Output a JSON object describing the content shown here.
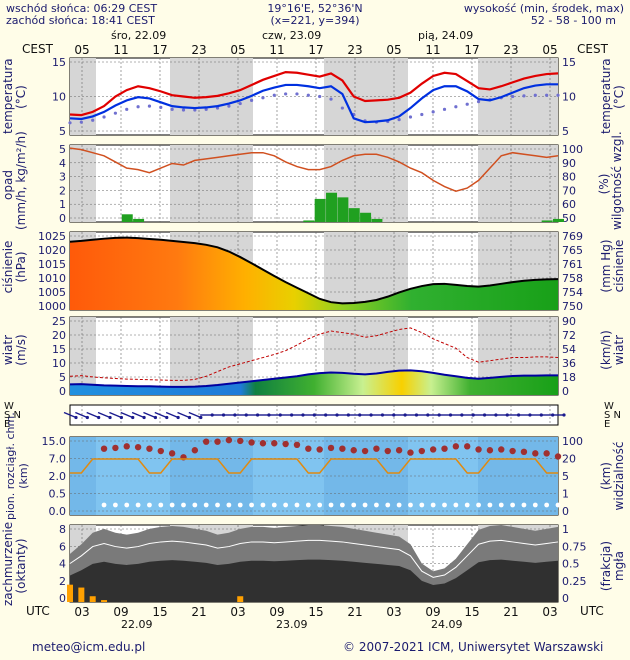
{
  "header": {
    "sunrise": "wschód słońca: 06:29 CEST",
    "sunset": "zachód słońca: 18:41 CEST",
    "coords": "19°16'E, 52°36'N",
    "grid": "(x=221, y=394)",
    "height_label": "wysokość (min, środek, max)",
    "height_values": "52 - 58 - 100 m"
  },
  "top_axis": {
    "tz": "CEST",
    "days": [
      "śro, 22.09",
      "czw, 23.09",
      "pią, 24.09"
    ],
    "hours": [
      "05",
      "11",
      "17",
      "23",
      "05",
      "11",
      "17",
      "23",
      "05",
      "11",
      "17",
      "23",
      "05"
    ]
  },
  "bottom_axis": {
    "tz": "UTC",
    "hours": [
      "03",
      "09",
      "15",
      "21",
      "03",
      "09",
      "15",
      "21",
      "03",
      "09",
      "15",
      "21",
      "03"
    ],
    "dates": [
      "22.09",
      "23.09",
      "24.09"
    ]
  },
  "panels": {
    "temperature": {
      "left_label": "temperatura\n(°C)",
      "right_label": "temperatura\n(°C)",
      "ticks": [
        "15",
        "10",
        "5"
      ]
    },
    "precip": {
      "left_label": "opad\n(mm/h, kg/m²/h)",
      "right_label": "(%)\nwilgotność wzgl.",
      "ticks_left": [
        "5",
        "4",
        "3",
        "2",
        "1",
        "0"
      ],
      "ticks_right": [
        "100",
        "90",
        "80",
        "70",
        "60",
        "50"
      ]
    },
    "pressure": {
      "left_label": "ciśnienie\n(hPa)",
      "right_label": "(mm Hg)\nciśnienie",
      "ticks_left": [
        "1025",
        "1020",
        "1015",
        "1010",
        "1005",
        "1000"
      ],
      "ticks_right": [
        "769",
        "765",
        "761",
        "758",
        "754",
        "750"
      ]
    },
    "wind": {
      "left_label": "wiatr\n(m/s)",
      "right_label": "(km/h)\nwiatr",
      "ticks_left": [
        "25",
        "20",
        "15",
        "10",
        "5",
        "0"
      ],
      "ticks_right": [
        "90",
        "72",
        "54",
        "36",
        "18",
        "0"
      ]
    },
    "winddir": {
      "left_label": "W\nS N\nE",
      "right_label": "W\nS N\nE"
    },
    "clouds": {
      "left_label": "pion. rozciągł. chm.\n(km)",
      "right_label": "(km)\nwidzialność",
      "ticks_left": [
        "15.0",
        "7.0",
        "2.0",
        "0.5",
        "0.0"
      ],
      "ticks_right": [
        "100",
        "20",
        "5",
        "1",
        "0"
      ]
    },
    "cover": {
      "left_label": "zachmurzenie\n(oktanty)",
      "right_label": "(frakcja)\nmgła",
      "ticks_left": [
        "8",
        "6",
        "4",
        "2",
        "0"
      ],
      "ticks_right": [
        "1",
        "0.75",
        "0.5",
        "0.25",
        "0"
      ]
    }
  },
  "footer": {
    "email": "meteo@icm.edu.pl",
    "copyright": "© 2007-2021 ICM, Uniwersytet Warszawski"
  },
  "chart_data": [
    {
      "type": "line",
      "title": "",
      "ylabel": "temperatura (°C)",
      "ylim": [
        5,
        17
      ],
      "series": [
        {
          "name": "",
          "color": "#e00000",
          "values": [
            8.2,
            8.1,
            8.6,
            9.5,
            11.0,
            12.0,
            12.6,
            12.3,
            11.8,
            11.2,
            11.0,
            10.8,
            10.9,
            11.1,
            11.5,
            12.0,
            12.8,
            13.6,
            14.2,
            14.8,
            14.7,
            14.4,
            14.1,
            14.6,
            13.5,
            11.0,
            10.3,
            10.4,
            10.5,
            10.8,
            11.6,
            13.0,
            14.2,
            14.7,
            14.5,
            13.4,
            12.3,
            12.1,
            12.6,
            13.2,
            13.8,
            14.2,
            14.5,
            14.6
          ]
        },
        {
          "name": "",
          "color": "#0030e0",
          "values": [
            7.6,
            7.5,
            7.9,
            8.6,
            9.6,
            10.4,
            10.9,
            10.7,
            10.1,
            9.5,
            9.3,
            9.2,
            9.3,
            9.5,
            9.9,
            10.4,
            11.1,
            11.9,
            12.4,
            12.8,
            12.8,
            12.6,
            12.3,
            12.6,
            11.4,
            7.6,
            7.0,
            7.1,
            7.3,
            7.9,
            9.2,
            10.7,
            12.0,
            12.6,
            12.6,
            11.8,
            10.6,
            10.4,
            10.9,
            11.6,
            12.3,
            12.7,
            12.9,
            12.9
          ]
        },
        {
          "name": "",
          "color": "#7070d0",
          "values": [
            6.9,
            7.0,
            7.3,
            7.8,
            8.4,
            9.0,
            9.4,
            9.5,
            9.3,
            9.0,
            8.9,
            8.9,
            9.0,
            9.2,
            9.5,
            9.9,
            10.4,
            10.8,
            11.2,
            11.4,
            11.4,
            11.2,
            11.0,
            10.6,
            9.2,
            8.2,
            7.2,
            7.0,
            7.1,
            7.4,
            7.8,
            8.2,
            8.6,
            9.0,
            9.4,
            9.8,
            10.2,
            10.5,
            10.8,
            11.0,
            11.1,
            11.2,
            11.2,
            11.2
          ]
        }
      ]
    },
    {
      "type": "bar",
      "title": "",
      "ylabel": "opad (mm/h)",
      "ylim": [
        0,
        5
      ],
      "series": [
        {
          "name": "",
          "color": "#20a020",
          "values": [
            0,
            0,
            0,
            0,
            0,
            0.5,
            0.2,
            0,
            0,
            0,
            0,
            0,
            0,
            0,
            0,
            0,
            0,
            0,
            0,
            0,
            0,
            0.1,
            1.5,
            1.9,
            1.6,
            0.9,
            0.6,
            0.2,
            0,
            0,
            0,
            0,
            0,
            0,
            0,
            0,
            0,
            0,
            0,
            0,
            0,
            0,
            0.1,
            0.2
          ]
        },
        {
          "name": "",
          "color": "#d05020",
          "values": [
            98,
            97,
            95,
            93,
            89,
            85,
            84,
            82,
            85,
            88,
            87,
            90,
            91,
            92,
            93,
            94,
            95,
            95,
            93,
            89,
            86,
            84,
            84,
            86,
            90,
            93,
            94,
            94,
            92,
            89,
            85,
            82,
            77,
            73,
            70,
            72,
            77,
            85,
            93,
            95,
            94,
            93,
            92,
            93
          ]
        }
      ]
    },
    {
      "type": "area",
      "title": "",
      "ylabel": "ciśnienie (hPa)",
      "ylim": [
        998,
        1026
      ],
      "series": [
        {
          "name": "",
          "values": [
            1022.5,
            1022.8,
            1023.2,
            1023.6,
            1023.9,
            1024.0,
            1023.8,
            1023.5,
            1023.2,
            1022.8,
            1022.4,
            1022.0,
            1021.4,
            1020.5,
            1019.0,
            1017.0,
            1014.8,
            1012.5,
            1010.2,
            1008.0,
            1006.0,
            1004.0,
            1002.0,
            1000.8,
            1000.4,
            1000.5,
            1000.9,
            1001.6,
            1002.8,
            1004.3,
            1005.6,
            1006.6,
            1007.3,
            1007.4,
            1007.0,
            1006.6,
            1006.4,
            1006.8,
            1007.4,
            1008.0,
            1008.5,
            1008.8,
            1009.0,
            1009.1
          ]
        }
      ]
    },
    {
      "type": "line",
      "title": "",
      "ylabel": "wiatr (m/s)",
      "ylim": [
        0,
        25
      ],
      "series": [
        {
          "name": "",
          "color": "#0000a0",
          "values": [
            3.4,
            3.5,
            3.3,
            3.1,
            3.0,
            2.9,
            2.8,
            2.8,
            2.7,
            2.6,
            2.6,
            2.7,
            2.9,
            3.2,
            3.6,
            4.0,
            4.4,
            4.8,
            5.2,
            5.6,
            6.0,
            6.6,
            7.0,
            7.2,
            7.1,
            6.8,
            6.6,
            6.9,
            7.4,
            7.8,
            7.9,
            7.6,
            7.1,
            6.5,
            6.0,
            5.5,
            5.2,
            5.5,
            5.8,
            6.1,
            6.2,
            6.2,
            6.3,
            6.3
          ]
        },
        {
          "name": "",
          "color": "#c00000",
          "values": [
            6.0,
            6.2,
            5.8,
            5.5,
            5.3,
            5.1,
            5.0,
            4.9,
            4.8,
            4.7,
            4.7,
            5.0,
            6.0,
            7.5,
            9.0,
            10.0,
            11.0,
            12.0,
            13.0,
            14.2,
            16.0,
            18.0,
            19.5,
            20.5,
            20.0,
            19.5,
            18.5,
            19.0,
            20.0,
            21.0,
            21.5,
            20.0,
            18.0,
            16.5,
            15.0,
            12.0,
            10.5,
            11.0,
            11.5,
            12.0,
            12.0,
            12.2,
            12.2,
            12.0
          ]
        }
      ]
    },
    {
      "type": "scatter",
      "title": "",
      "ylabel": "pion. rozciągł. chm. (km)",
      "series": [
        {
          "name": "",
          "color": "#a03030",
          "values": [
            0,
            0,
            0,
            8.5,
            8.6,
            8.8,
            8.7,
            8.5,
            8.2,
            7.9,
            7.4,
            8.3,
            9.4,
            9.4,
            9.6,
            9.5,
            9.3,
            9.2,
            9.2,
            9.1,
            9.0,
            8.5,
            8.4,
            8.6,
            8.5,
            8.3,
            8.2,
            8.5,
            8.2,
            8.3,
            8.0,
            8.2,
            8.4,
            8.5,
            8.8,
            8.8,
            8.4,
            8.3,
            8.4,
            8.2,
            8.1,
            7.9,
            7.9,
            7.5
          ]
        }
      ]
    },
    {
      "type": "area",
      "title": "",
      "ylabel": "zachmurzenie (oktanty)",
      "ylim": [
        0,
        8
      ],
      "series": [
        {
          "name": "",
          "color": "#303030",
          "values": [
            5.0,
            6.0,
            7.2,
            7.6,
            7.2,
            7.0,
            7.2,
            7.6,
            7.8,
            7.9,
            7.8,
            7.6,
            7.4,
            7.0,
            7.2,
            7.6,
            7.8,
            7.8,
            7.7,
            7.8,
            7.9,
            8.0,
            8.0,
            7.9,
            7.8,
            7.6,
            7.4,
            7.2,
            7.0,
            6.8,
            6.0,
            4.0,
            3.2,
            3.5,
            4.5,
            6.0,
            7.5,
            7.9,
            8.0,
            7.8,
            7.6,
            7.4,
            7.6,
            7.8
          ]
        },
        {
          "name": "",
          "color": "#ffa000",
          "values": [
            1.8,
            1.5,
            0.6,
            0.2,
            0,
            0,
            0,
            0,
            0,
            0,
            0,
            0,
            0,
            0,
            0,
            0.6,
            0,
            0,
            0,
            0,
            0,
            0,
            0,
            0,
            0,
            0,
            0,
            0,
            0,
            0,
            0,
            0,
            0,
            0,
            0,
            0,
            0,
            0,
            0,
            0,
            0,
            0,
            0,
            0
          ]
        }
      ]
    }
  ]
}
